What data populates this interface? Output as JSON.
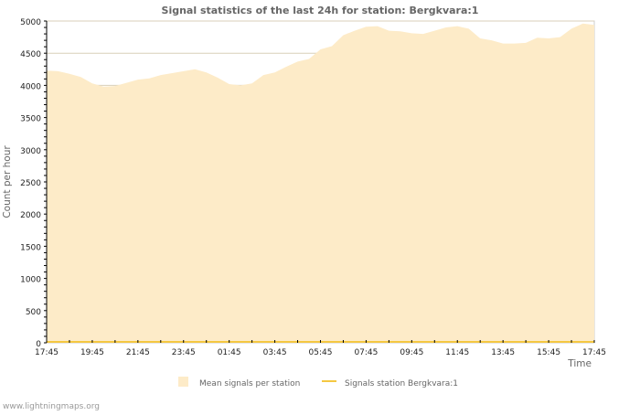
{
  "chart_data": {
    "type": "area",
    "title": "Signal statistics of the last 24h for station: Bergkvara:1",
    "xlabel": "Time",
    "ylabel": "Count per hour",
    "ylim": [
      0,
      5000
    ],
    "yticks": [
      "0",
      "500",
      "1000",
      "1500",
      "2000",
      "2500",
      "3000",
      "3500",
      "4000",
      "4500",
      "5000"
    ],
    "xticks": [
      "17:45",
      "19:45",
      "21:45",
      "23:45",
      "01:45",
      "03:45",
      "05:45",
      "07:45",
      "09:45",
      "11:45",
      "13:45",
      "15:45",
      "17:45"
    ],
    "x_step_minutes": 30,
    "grid": true,
    "legend_placement": "bottom",
    "series": [
      {
        "name": "Mean signals per station",
        "type": "area",
        "color": "#fdebc8",
        "values": [
          4230,
          4220,
          4180,
          4130,
          4030,
          3980,
          3990,
          4040,
          4090,
          4110,
          4160,
          4190,
          4220,
          4250,
          4200,
          4120,
          4020,
          4000,
          4030,
          4160,
          4200,
          4290,
          4370,
          4410,
          4560,
          4610,
          4780,
          4850,
          4910,
          4920,
          4850,
          4840,
          4810,
          4800,
          4850,
          4900,
          4920,
          4880,
          4730,
          4700,
          4650,
          4650,
          4660,
          4740,
          4730,
          4750,
          4880,
          4960,
          4940
        ]
      },
      {
        "name": "Signals station Bergkvara:1",
        "type": "line",
        "color": "#f5c842",
        "values": [
          0,
          0,
          0,
          0,
          0,
          0,
          0,
          0,
          0,
          0,
          0,
          0,
          0,
          0,
          0,
          0,
          0,
          0,
          0,
          0,
          0,
          0,
          0,
          0,
          0,
          0,
          0,
          0,
          0,
          0,
          0,
          0,
          0,
          0,
          0,
          0,
          0,
          0,
          0,
          0,
          0,
          0,
          0,
          0,
          0,
          0,
          0,
          0,
          0
        ]
      }
    ]
  },
  "footer": {
    "watermark": "www.lightningmaps.org"
  }
}
